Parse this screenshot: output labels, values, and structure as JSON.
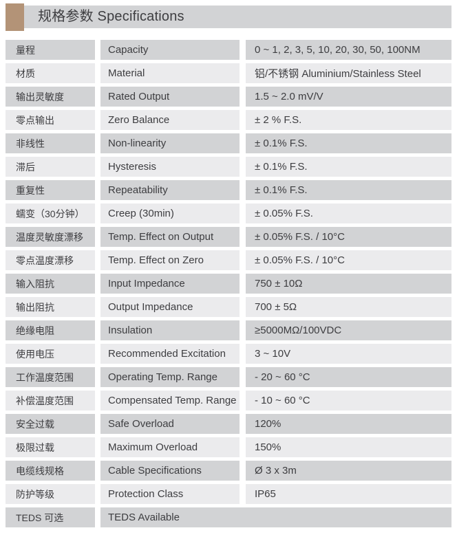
{
  "header": {
    "title": "规格参数 Specifications"
  },
  "colors": {
    "accent": "#b39377",
    "header_bar": "#d2d3d5",
    "row_dark": "#d2d3d5",
    "row_light": "#ebebed",
    "text": "#3d3d40"
  },
  "table": {
    "columns": [
      "Chinese label",
      "English label",
      "Value"
    ],
    "rows": [
      {
        "zh": "量程",
        "en": "Capacity",
        "value": "0 ~ 1, 2, 3, 5, 10, 20, 30, 50, 100NM"
      },
      {
        "zh": "材质",
        "en": "Material",
        "value": "铝/不锈钢 Aluminium/Stainless Steel"
      },
      {
        "zh": "输出灵敏度",
        "en": "Rated Output",
        "value": "1.5 ~ 2.0 mV/V"
      },
      {
        "zh": "零点输出",
        "en": "Zero Balance",
        "value": "± 2 % F.S."
      },
      {
        "zh": "非线性",
        "en": "Non-linearity",
        "value": "± 0.1% F.S."
      },
      {
        "zh": "滞后",
        "en": "Hysteresis",
        "value": "± 0.1% F.S."
      },
      {
        "zh": "重复性",
        "en": "Repeatability",
        "value": "± 0.1% F.S."
      },
      {
        "zh": "蠕变（30分钟）",
        "en": "Creep (30min)",
        "value": "± 0.05% F.S."
      },
      {
        "zh": "温度灵敏度漂移",
        "en": "Temp. Effect on Output",
        "value": "± 0.05% F.S. / 10°C"
      },
      {
        "zh": "零点温度漂移",
        "en": "Temp. Effect on Zero",
        "value": "± 0.05% F.S. / 10°C"
      },
      {
        "zh": "输入阻抗",
        "en": "Input Impedance",
        "value": "750 ± 10Ω"
      },
      {
        "zh": "输出阻抗",
        "en": "Output Impedance",
        "value": "700 ± 5Ω"
      },
      {
        "zh": "绝缘电阻",
        "en": "Insulation",
        "value": "≥5000MΩ/100VDC"
      },
      {
        "zh": "使用电压",
        "en": "Recommended Excitation",
        "value": "3 ~ 10V"
      },
      {
        "zh": "工作温度范围",
        "en": "Operating Temp. Range",
        "value": "- 20 ~ 60 °C"
      },
      {
        "zh": "补偿温度范围",
        "en": "Compensated Temp. Range",
        "value": "- 10 ~ 60 °C"
      },
      {
        "zh": "安全过载",
        "en": "Safe Overload",
        "value": "120%"
      },
      {
        "zh": "极限过载",
        "en": "Maximum Overload",
        "value": "150%"
      },
      {
        "zh": "电缆线规格",
        "en": "Cable Specifications",
        "value": "Ø 3 x 3m"
      },
      {
        "zh": "防护等级",
        "en": "Protection Class",
        "value": "IP65"
      },
      {
        "zh": "TEDS 可选",
        "en": "TEDS Available",
        "value": "",
        "merged": true
      }
    ]
  }
}
